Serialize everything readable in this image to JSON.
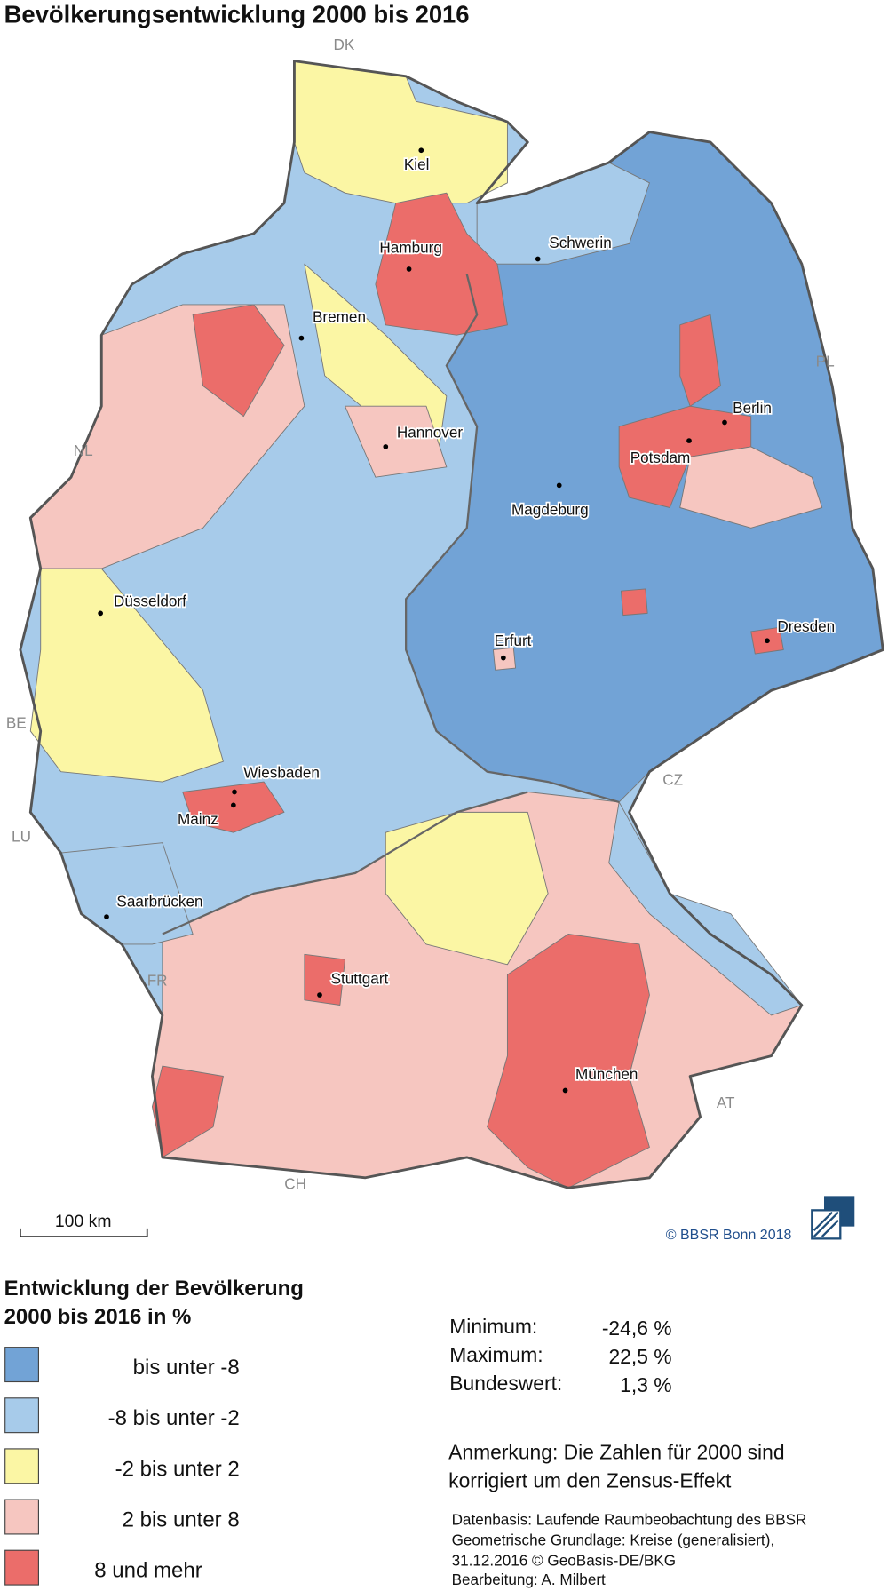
{
  "header": {
    "title": "Bevölkerungsentwicklung 2000 bis 2016"
  },
  "map": {
    "cities": [
      "Kiel",
      "Hamburg",
      "Schwerin",
      "Bremen",
      "Hannover",
      "Berlin",
      "Potsdam",
      "Magdeburg",
      "Düsseldorf",
      "Erfurt",
      "Dresden",
      "Wiesbaden",
      "Mainz",
      "Saarbrücken",
      "Stuttgart",
      "München"
    ],
    "countries": [
      "DK",
      "PL",
      "NL",
      "BE",
      "LU",
      "CZ",
      "FR",
      "CH",
      "AT"
    ],
    "scale_label": "100 km",
    "copyright": "© BBSR Bonn 2018"
  },
  "legend": {
    "title": [
      "Entwicklung der Bevölkerung",
      "2000 bis 2016 in %"
    ],
    "items": [
      {
        "label": "bis unter -8",
        "color": "#72a3d6"
      },
      {
        "label": "-8 bis unter -2",
        "color": "#a7cbea"
      },
      {
        "label": "-2 bis unter 2",
        "color": "#fbf6a4"
      },
      {
        "label": "2 bis unter 8",
        "color": "#f6c6c0"
      },
      {
        "label": "8 und mehr",
        "color": "#eb6d6a"
      }
    ]
  },
  "stats": [
    {
      "label": "Minimum:",
      "value": "-24,6 %"
    },
    {
      "label": "Maximum:",
      "value": "22,5 %"
    },
    {
      "label": "Bundeswert:",
      "value": "1,3 %"
    }
  ],
  "note": [
    "Anmerkung: Die Zahlen für 2000 sind",
    "korrigiert um den Zensus-Effekt"
  ],
  "source": [
    "Datenbasis: Laufende Raumbeobachtung des BBSR",
    "Geometrische Grundlage: Kreise (generalisiert),",
    "31.12.2016 © GeoBasis-DE/BKG",
    "Bearbeitung: A. Milbert"
  ]
}
